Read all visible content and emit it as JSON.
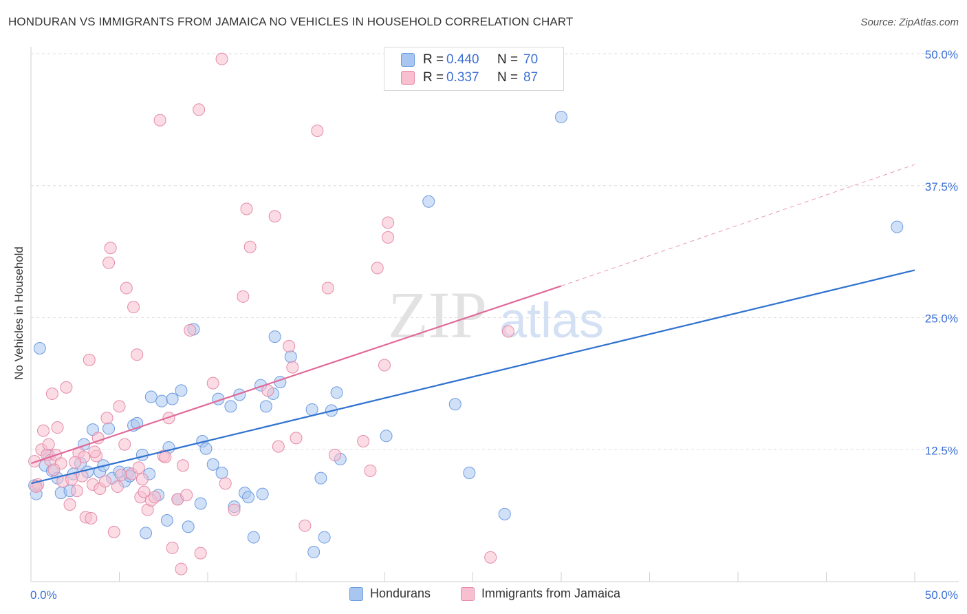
{
  "title": "HONDURAN VS IMMIGRANTS FROM JAMAICA NO VEHICLES IN HOUSEHOLD CORRELATION CHART",
  "source": "Source: ZipAtlas.com",
  "watermark": {
    "zip": "ZIP",
    "atlas": "atlas"
  },
  "legend": {
    "rows": [
      {
        "r_label": "R =",
        "r_value": "0.440",
        "n_label": "N =",
        "n_value": "70",
        "color": "#a9c6f0",
        "border": "#6d9be0"
      },
      {
        "r_label": "R =",
        "r_value": "0.337",
        "n_label": "N =",
        "n_value": "87",
        "color": "#f7bfd0",
        "border": "#e58aa8"
      }
    ]
  },
  "bottom_legend": [
    {
      "label": "Hondurans",
      "color": "#a9c6f0",
      "border": "#6d9be0"
    },
    {
      "label": "Immigrants from Jamaica",
      "color": "#f7bfd0",
      "border": "#e58aa8"
    }
  ],
  "chart_data": {
    "type": "scatter",
    "xlabel": "",
    "ylabel": "No Vehicles in Household",
    "xlim": [
      0,
      50
    ],
    "ylim": [
      0,
      50
    ],
    "x_tick_labels": [
      "0.0%",
      "50.0%"
    ],
    "y_tick_labels": [
      "12.5%",
      "25.0%",
      "37.5%",
      "50.0%"
    ],
    "y_ticks": [
      12.5,
      25,
      37.5,
      50
    ],
    "grid": true,
    "series": [
      {
        "name": "Hondurans",
        "color": "#6d9be0",
        "fill": "#a9c6f0",
        "trend": {
          "x": [
            0,
            50
          ],
          "y": [
            9.3,
            29.5
          ],
          "dashed_to": null
        },
        "points": [
          [
            0.3,
            8.3
          ],
          [
            0.2,
            9.1
          ],
          [
            0.5,
            22.1
          ],
          [
            0.8,
            11.0
          ],
          [
            1.0,
            12.0
          ],
          [
            1.2,
            10.5
          ],
          [
            1.5,
            9.8
          ],
          [
            1.7,
            8.4
          ],
          [
            2.2,
            8.6
          ],
          [
            2.4,
            10.2
          ],
          [
            2.8,
            11.2
          ],
          [
            3.0,
            13.0
          ],
          [
            3.2,
            10.4
          ],
          [
            3.5,
            14.4
          ],
          [
            3.9,
            10.4
          ],
          [
            4.1,
            11.0
          ],
          [
            4.4,
            14.5
          ],
          [
            4.6,
            9.8
          ],
          [
            5.0,
            10.4
          ],
          [
            5.3,
            9.5
          ],
          [
            5.5,
            10.3
          ],
          [
            5.6,
            10.0
          ],
          [
            5.8,
            14.8
          ],
          [
            6.0,
            15.0
          ],
          [
            6.3,
            12.0
          ],
          [
            6.5,
            4.6
          ],
          [
            6.7,
            10.2
          ],
          [
            6.8,
            17.5
          ],
          [
            7.2,
            8.2
          ],
          [
            7.4,
            17.1
          ],
          [
            7.7,
            5.8
          ],
          [
            7.8,
            12.7
          ],
          [
            8.0,
            17.3
          ],
          [
            8.3,
            7.8
          ],
          [
            8.5,
            18.1
          ],
          [
            8.9,
            5.2
          ],
          [
            9.2,
            23.9
          ],
          [
            9.6,
            7.4
          ],
          [
            9.7,
            13.3
          ],
          [
            9.9,
            12.6
          ],
          [
            10.3,
            11.1
          ],
          [
            10.6,
            17.3
          ],
          [
            10.8,
            10.3
          ],
          [
            11.3,
            16.6
          ],
          [
            11.5,
            7.1
          ],
          [
            11.8,
            17.7
          ],
          [
            12.1,
            8.4
          ],
          [
            12.3,
            8.0
          ],
          [
            12.6,
            4.2
          ],
          [
            13.0,
            18.6
          ],
          [
            13.1,
            8.3
          ],
          [
            13.3,
            16.6
          ],
          [
            13.7,
            17.8
          ],
          [
            13.8,
            23.2
          ],
          [
            14.1,
            18.9
          ],
          [
            14.7,
            21.3
          ],
          [
            15.9,
            16.3
          ],
          [
            16.0,
            2.8
          ],
          [
            16.4,
            9.8
          ],
          [
            16.6,
            4.2
          ],
          [
            17.0,
            16.2
          ],
          [
            17.3,
            17.9
          ],
          [
            17.5,
            11.6
          ],
          [
            20.1,
            13.8
          ],
          [
            22.5,
            36.0
          ],
          [
            24.0,
            16.8
          ],
          [
            24.8,
            10.3
          ],
          [
            26.8,
            6.4
          ],
          [
            30.0,
            44.0
          ],
          [
            49.0,
            33.6
          ]
        ]
      },
      {
        "name": "Immigrants from Jamaica",
        "color": "#e58aa8",
        "fill": "#f7bfd0",
        "trend": {
          "x": [
            0,
            30
          ],
          "y": [
            11.2,
            28.0
          ],
          "dashed_to": [
            50,
            39.5
          ]
        },
        "points": [
          [
            0.2,
            11.4
          ],
          [
            0.4,
            9.2
          ],
          [
            0.6,
            12.5
          ],
          [
            0.7,
            14.3
          ],
          [
            0.9,
            12.0
          ],
          [
            1.0,
            13.0
          ],
          [
            1.1,
            11.5
          ],
          [
            1.2,
            17.8
          ],
          [
            1.4,
            12.0
          ],
          [
            1.5,
            14.6
          ],
          [
            1.7,
            11.2
          ],
          [
            1.8,
            9.5
          ],
          [
            2.0,
            18.4
          ],
          [
            2.2,
            7.3
          ],
          [
            2.3,
            9.7
          ],
          [
            2.6,
            8.6
          ],
          [
            2.7,
            12.2
          ],
          [
            2.9,
            10.0
          ],
          [
            3.0,
            11.8
          ],
          [
            3.1,
            6.1
          ],
          [
            3.3,
            21.0
          ],
          [
            3.4,
            6.0
          ],
          [
            3.5,
            9.2
          ],
          [
            3.7,
            11.9
          ],
          [
            3.8,
            13.6
          ],
          [
            3.9,
            8.8
          ],
          [
            4.2,
            9.5
          ],
          [
            4.3,
            15.5
          ],
          [
            4.4,
            30.2
          ],
          [
            4.5,
            31.6
          ],
          [
            4.7,
            4.7
          ],
          [
            5.0,
            16.6
          ],
          [
            5.1,
            10.1
          ],
          [
            5.3,
            13.0
          ],
          [
            5.4,
            27.8
          ],
          [
            5.7,
            10.2
          ],
          [
            5.8,
            26.0
          ],
          [
            6.0,
            21.5
          ],
          [
            6.2,
            8.0
          ],
          [
            6.3,
            9.7
          ],
          [
            6.4,
            8.5
          ],
          [
            6.6,
            6.8
          ],
          [
            6.8,
            7.7
          ],
          [
            7.0,
            8.0
          ],
          [
            7.3,
            43.7
          ],
          [
            7.5,
            11.9
          ],
          [
            7.6,
            11.8
          ],
          [
            7.8,
            15.5
          ],
          [
            8.0,
            3.2
          ],
          [
            8.3,
            7.8
          ],
          [
            8.5,
            1.2
          ],
          [
            8.6,
            11.0
          ],
          [
            9.0,
            23.8
          ],
          [
            9.5,
            44.7
          ],
          [
            9.6,
            2.7
          ],
          [
            10.3,
            18.8
          ],
          [
            10.8,
            49.5
          ],
          [
            11.0,
            9.3
          ],
          [
            11.5,
            6.8
          ],
          [
            12.0,
            27.0
          ],
          [
            12.2,
            35.3
          ],
          [
            12.4,
            31.7
          ],
          [
            13.4,
            18.1
          ],
          [
            13.8,
            34.6
          ],
          [
            14.0,
            12.8
          ],
          [
            14.6,
            22.3
          ],
          [
            14.8,
            20.3
          ],
          [
            15.0,
            13.6
          ],
          [
            15.5,
            5.3
          ],
          [
            16.2,
            42.7
          ],
          [
            16.8,
            27.8
          ],
          [
            17.2,
            12.0
          ],
          [
            18.8,
            13.3
          ],
          [
            19.2,
            10.5
          ],
          [
            19.6,
            29.7
          ],
          [
            20.0,
            20.5
          ],
          [
            20.2,
            34.0
          ],
          [
            20.2,
            32.6
          ],
          [
            26.0,
            2.3
          ],
          [
            27.0,
            23.7
          ],
          [
            0.3,
            9.0
          ],
          [
            1.3,
            10.6
          ],
          [
            2.5,
            11.3
          ],
          [
            3.6,
            12.3
          ],
          [
            4.9,
            9.0
          ],
          [
            6.1,
            10.8
          ],
          [
            8.8,
            8.2
          ]
        ]
      }
    ]
  }
}
